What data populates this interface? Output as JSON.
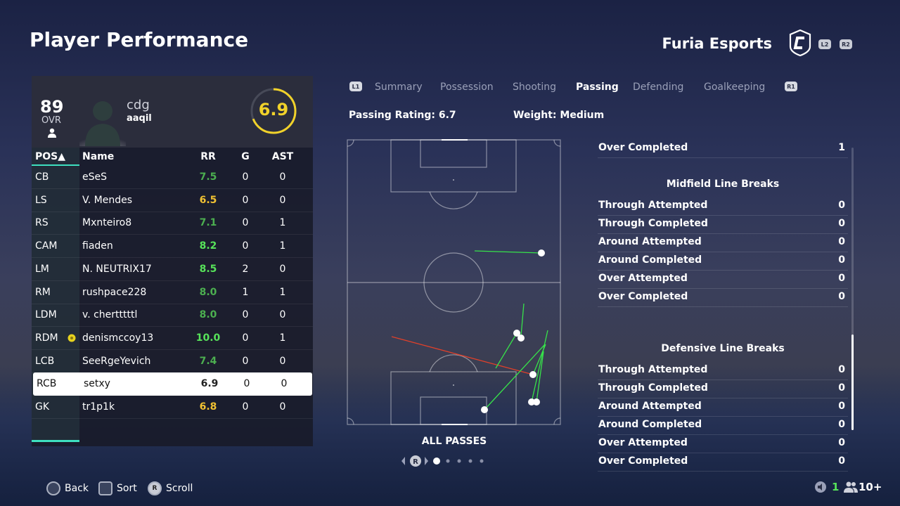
{
  "header": {
    "title": "Player Performance",
    "team_name": "Furia Esports",
    "l2": "L2",
    "r2": "R2"
  },
  "player_card": {
    "ovr": "89",
    "ovr_label": "OVR",
    "name": "cdg",
    "team": "aaqil",
    "rating": "6.9",
    "rating_color": "#f1d22a"
  },
  "table": {
    "headers": {
      "pos": "POS▲",
      "name": "Name",
      "rr": "RR",
      "g": "G",
      "ast": "AST"
    },
    "rows": [
      {
        "pos": "CB",
        "name": "eSeS",
        "rr": "7.5",
        "g": "0",
        "ast": "0",
        "rr_color": "#4caf50"
      },
      {
        "pos": "LS",
        "name": "V. Mendes",
        "rr": "6.5",
        "g": "0",
        "ast": "0",
        "rr_color": "#f1c232"
      },
      {
        "pos": "RS",
        "name": "Mxnteiro8",
        "rr": "7.1",
        "g": "0",
        "ast": "1",
        "rr_color": "#4caf50"
      },
      {
        "pos": "CAM",
        "name": "fiaden",
        "rr": "8.2",
        "g": "0",
        "ast": "1",
        "rr_color": "#57e35a"
      },
      {
        "pos": "LM",
        "name": "N. NEUTRIX17",
        "rr": "8.5",
        "g": "2",
        "ast": "0",
        "rr_color": "#57e35a"
      },
      {
        "pos": "RM",
        "name": "rushpace228",
        "rr": "8.0",
        "g": "1",
        "ast": "1",
        "rr_color": "#4caf50"
      },
      {
        "pos": "LDM",
        "name": "v. chertttttl",
        "rr": "8.0",
        "g": "0",
        "ast": "0",
        "rr_color": "#4caf50"
      },
      {
        "pos": "RDM",
        "name": "denismccoy13",
        "rr": "10.0",
        "g": "0",
        "ast": "1",
        "rr_color": "#57e35a"
      },
      {
        "pos": "LCB",
        "name": "SeeRgeYevich",
        "rr": "7.4",
        "g": "0",
        "ast": "0",
        "rr_color": "#4caf50"
      },
      {
        "pos": "RCB",
        "name": "setxy",
        "rr": "6.9",
        "g": "0",
        "ast": "0",
        "rr_color": "#222222"
      },
      {
        "pos": "GK",
        "name": "tr1p1k",
        "rr": "6.8",
        "g": "0",
        "ast": "0",
        "rr_color": "#f1c232"
      }
    ]
  },
  "tabs": {
    "l1": "L1",
    "r1": "R1",
    "items": [
      "Summary",
      "Possession",
      "Shooting",
      "Passing",
      "Defending",
      "Goalkeeping"
    ],
    "active": "Passing"
  },
  "passing": {
    "rating_label": "Passing Rating: 6.7",
    "weight_label": "Weight: Medium",
    "map_label": "ALL PASSES"
  },
  "stats": {
    "top_row": {
      "label": "Over Completed",
      "value": "1"
    },
    "sections": [
      {
        "title": "Midfield Line Breaks",
        "rows": [
          {
            "label": "Through Attempted",
            "value": "0"
          },
          {
            "label": "Through Completed",
            "value": "0"
          },
          {
            "label": "Around Attempted",
            "value": "0"
          },
          {
            "label": "Around Completed",
            "value": "0"
          },
          {
            "label": "Over Attempted",
            "value": "0"
          },
          {
            "label": "Over Completed",
            "value": "0"
          }
        ]
      },
      {
        "title": "Defensive Line Breaks",
        "rows": [
          {
            "label": "Through Attempted",
            "value": "0"
          },
          {
            "label": "Through Completed",
            "value": "0"
          },
          {
            "label": "Around Attempted",
            "value": "0"
          },
          {
            "label": "Around Completed",
            "value": "0"
          },
          {
            "label": "Over Attempted",
            "value": "0"
          },
          {
            "label": "Over Completed",
            "value": "0"
          }
        ]
      }
    ]
  },
  "footer": {
    "back": "Back",
    "sort": "Sort",
    "scroll": "Scroll",
    "r_glyph": "R",
    "count": "1",
    "players": "10+"
  },
  "colors": {
    "accent": "#3ee0c0",
    "pass_complete": "#37e34a",
    "pass_failed": "#e0402a"
  }
}
